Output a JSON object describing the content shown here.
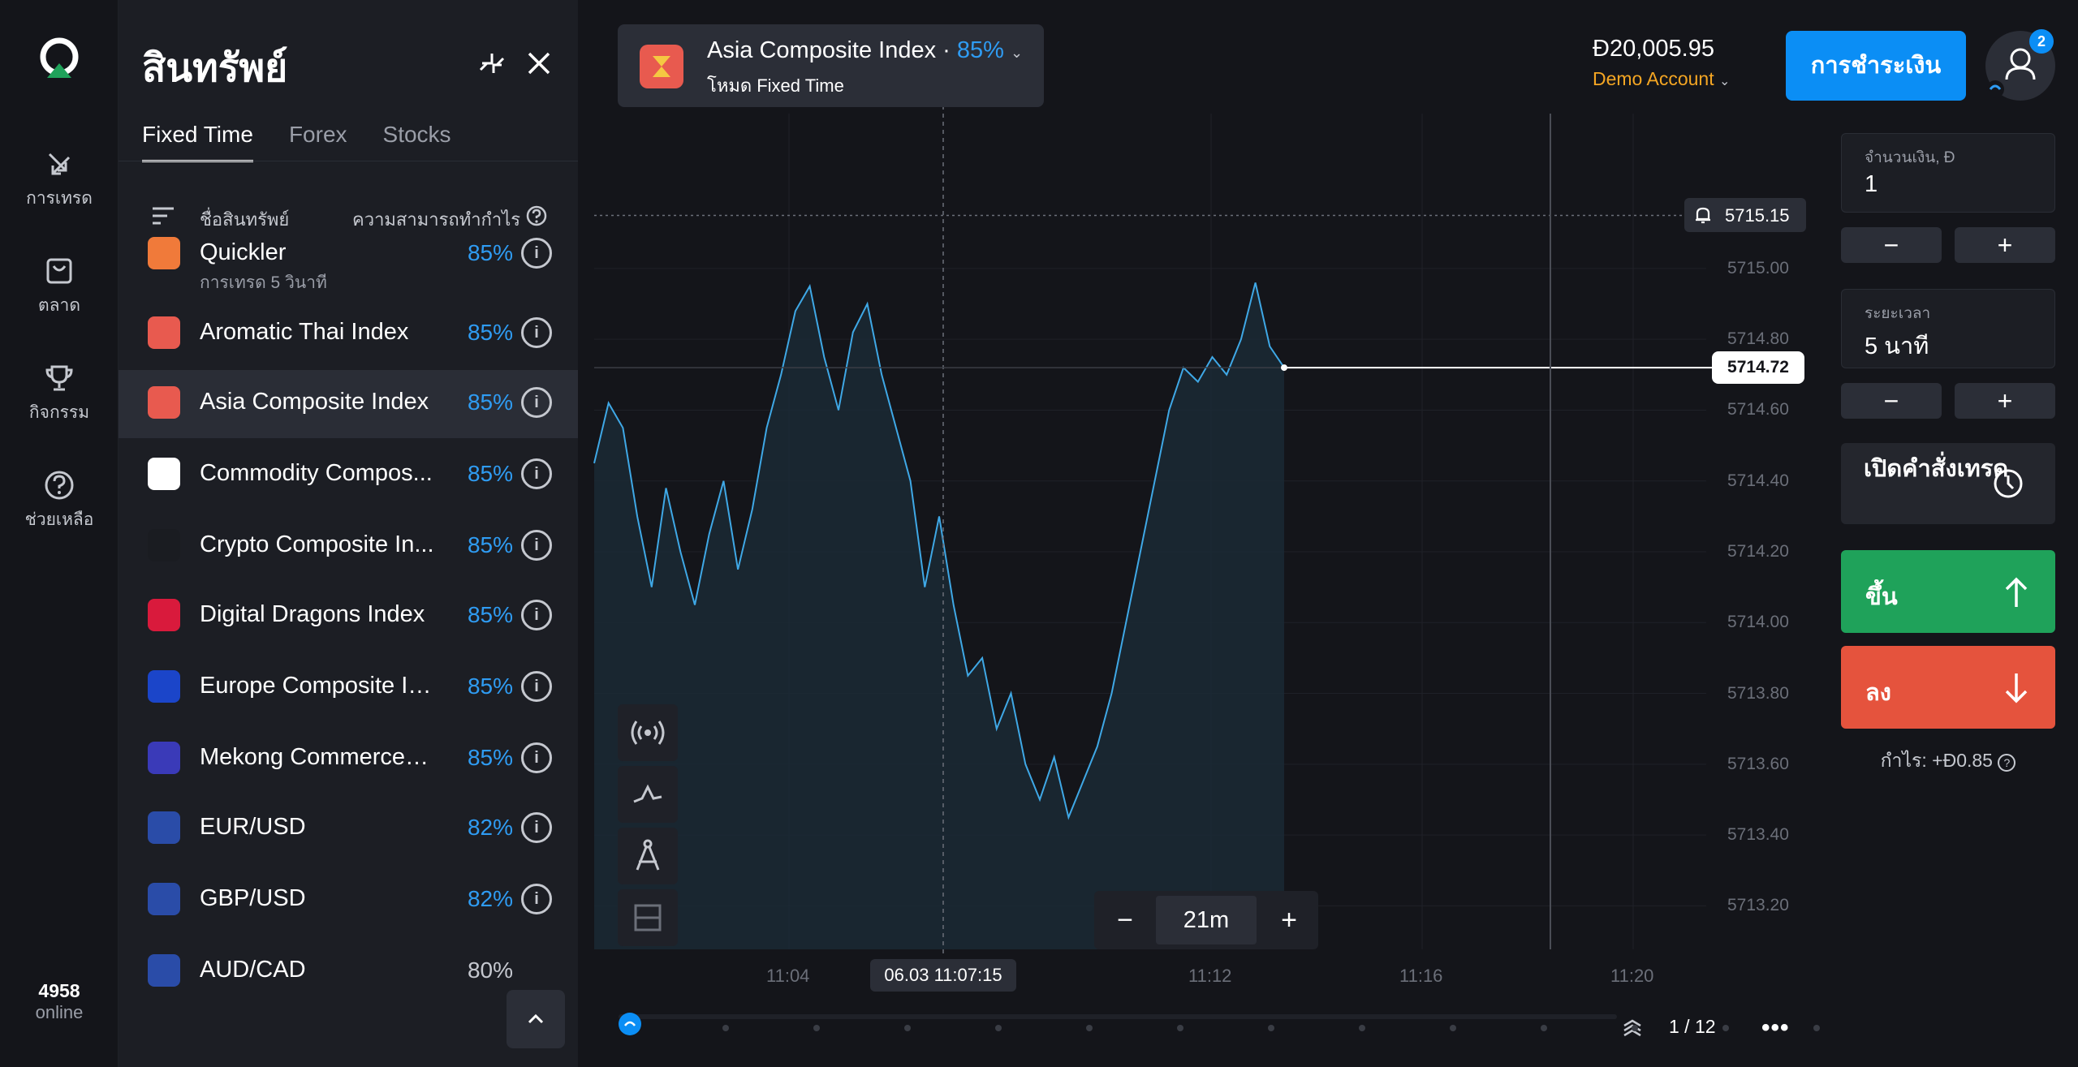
{
  "rail": {
    "items": [
      {
        "label": "การเทรด",
        "icon": "trade-arrows-icon"
      },
      {
        "label": "ตลาด",
        "icon": "shopping-bag-icon"
      },
      {
        "label": "กิจกรรม",
        "icon": "trophy-icon"
      },
      {
        "label": "ช่วยเหลือ",
        "icon": "help-circle-icon"
      }
    ],
    "online_count": "4958",
    "online_label": "online"
  },
  "panel": {
    "title": "สินทรัพย์",
    "tabs": [
      "Fixed Time",
      "Forex",
      "Stocks"
    ],
    "head_name": "ชื่อสินทรัพย์",
    "head_profit": "ความสามารถทำกำไร",
    "assets": [
      {
        "name": "Quickler",
        "sub": "การเทรด 5 วินาที",
        "pct": "85%",
        "color": "#f07a3a"
      },
      {
        "name": "Aromatic Thai Index",
        "pct": "85%",
        "color": "#e85a4f"
      },
      {
        "name": "Asia Composite Index",
        "pct": "85%",
        "color": "#e85a4f"
      },
      {
        "name": "Commodity Compos...",
        "pct": "85%",
        "color": "#ffffff"
      },
      {
        "name": "Crypto Composite In...",
        "pct": "85%",
        "color": "#1a1c21"
      },
      {
        "name": "Digital Dragons Index",
        "pct": "85%",
        "color": "#d91a3c"
      },
      {
        "name": "Europe Composite In...",
        "pct": "85%",
        "color": "#1b45c9"
      },
      {
        "name": "Mekong Commerce I...",
        "pct": "85%",
        "color": "#3a3ab8"
      },
      {
        "name": "EUR/USD",
        "pct": "82%",
        "color": "#2a4ca8"
      },
      {
        "name": "GBP/USD",
        "pct": "82%",
        "color": "#2a4ca8"
      },
      {
        "name": "AUD/CAD",
        "pct": "80%",
        "color": "#2a4ca8"
      }
    ]
  },
  "header": {
    "asset_name": "Asia Composite Index",
    "asset_pct": "85%",
    "mode": "โหมด Fixed Time",
    "balance": "Đ20,005.95",
    "account": "Demo Account",
    "deposit": "การชำระเงิน",
    "badge": "2"
  },
  "trade": {
    "amount_label": "จำนวนเงิน, Đ",
    "amount_value": "1",
    "time_label": "ระยะเวลา",
    "time_value": "5 นาที",
    "minus": "−",
    "plus": "+",
    "open_order": "เปิดคำสั่งเทรด",
    "up": "ขึ้น",
    "down": "ลง",
    "profit": "กำไร: +Đ0.85"
  },
  "chart_data": {
    "type": "area",
    "y_ticks": [
      "5715.00",
      "5714.80",
      "5714.60",
      "5714.40",
      "5714.20",
      "5714.00",
      "5713.80",
      "5713.60",
      "5713.40",
      "5713.20"
    ],
    "x_ticks": [
      "11:04",
      "11:12",
      "11:16",
      "11:20"
    ],
    "crosshair_time": "06.03 11:07:15",
    "current_price": "5714.72",
    "alert_price": "5715.15",
    "zoom": "21m",
    "page": "1 / 12",
    "ylim": [
      5713.1,
      5715.3
    ],
    "values": [
      5714.45,
      5714.62,
      5714.55,
      5714.3,
      5714.1,
      5714.38,
      5714.2,
      5714.05,
      5714.25,
      5714.4,
      5714.15,
      5714.32,
      5714.55,
      5714.7,
      5714.88,
      5714.95,
      5714.75,
      5714.6,
      5714.82,
      5714.9,
      5714.7,
      5714.55,
      5714.4,
      5714.1,
      5714.3,
      5714.05,
      5713.85,
      5713.9,
      5713.7,
      5713.8,
      5713.6,
      5713.5,
      5713.62,
      5713.45,
      5713.55,
      5713.65,
      5713.8,
      5714.0,
      5714.2,
      5714.4,
      5714.6,
      5714.72,
      5714.68,
      5714.75,
      5714.7,
      5714.8,
      5714.96,
      5714.78,
      5714.72
    ]
  }
}
